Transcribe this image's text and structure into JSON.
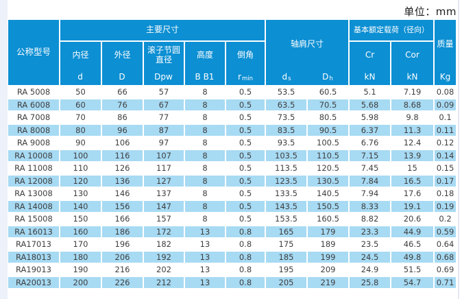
{
  "page": {
    "unit_label": "单位：mm"
  },
  "colors": {
    "header_blue": "#0c8fd3",
    "row_blue": "#a7daf3",
    "row_white": "#ffffff",
    "text_dark": "#3e3e3e"
  },
  "table": {
    "header": {
      "model_col": "公称型号",
      "groups": {
        "main_dims": "主要尺寸",
        "shoulder_dims": "轴肩尺寸",
        "load_rating": "基本额定载荷（径向）",
        "mass": "质量"
      },
      "sub_columns": [
        {
          "label": "内径",
          "symbol": "d",
          "symbol_sub": ""
        },
        {
          "label": "外径",
          "symbol": "D",
          "symbol_sub": ""
        },
        {
          "label": "滚子节圆直径",
          "symbol": "Dpw",
          "symbol_sub": ""
        },
        {
          "label": "高度",
          "symbol": "B B1",
          "symbol_sub": ""
        },
        {
          "label": "倒角",
          "symbol": "r",
          "symbol_sub": "min"
        }
      ],
      "shoulder_symbols": [
        {
          "base": "d",
          "sub": "s"
        },
        {
          "base": "D",
          "sub": "h"
        }
      ],
      "load_columns": [
        {
          "label": "Cr",
          "unit": "kN"
        },
        {
          "label": "Cor",
          "unit": "kN"
        }
      ],
      "mass_unit": "Kg"
    },
    "rows": [
      [
        "RA 5008",
        "50",
        "66",
        "57",
        "8",
        "0.5",
        "53.5",
        "60.5",
        "5.1",
        "7.19",
        "0.08"
      ],
      [
        "RA 6008",
        "60",
        "76",
        "67",
        "8",
        "0.5",
        "63.5",
        "70.5",
        "5.68",
        "8.68",
        "0.09"
      ],
      [
        "RA 7008",
        "70",
        "86",
        "77",
        "8",
        "0.5",
        "73.5",
        "80.5",
        "5.98",
        "9.8",
        "0.1"
      ],
      [
        "RA 8008",
        "80",
        "96",
        "87",
        "8",
        "0.5",
        "83.5",
        "90.5",
        "6.37",
        "11.3",
        "0.11"
      ],
      [
        "RA 9008",
        "90",
        "106",
        "97",
        "8",
        "0.5",
        "93.5",
        "100.5",
        "6.76",
        "12.4",
        "0.12"
      ],
      [
        "RA 10008",
        "100",
        "116",
        "107",
        "8",
        "0.5",
        "103.5",
        "110.5",
        "7.15",
        "13.9",
        "0.14"
      ],
      [
        "RA 11008",
        "110",
        "126",
        "117",
        "8",
        "0.5",
        "113.5",
        "120.5",
        "7.45",
        "15",
        "0.15"
      ],
      [
        "RA 12008",
        "120",
        "136",
        "127",
        "8",
        "0.5",
        "123.5",
        "130.5",
        "7.84",
        "16.5",
        "0.17"
      ],
      [
        "RA 13008",
        "130",
        "146",
        "137",
        "8",
        "0.5",
        "133.5",
        "140.5",
        "7.94",
        "17.6",
        "0.18"
      ],
      [
        "RA 14008",
        "140",
        "156",
        "147",
        "8",
        "0.5",
        "143.5",
        "150.5",
        "8.33",
        "19.1",
        "0.19"
      ],
      [
        "RA 15008",
        "150",
        "166",
        "157",
        "8",
        "0.5",
        "153.5",
        "160.5",
        "8.82",
        "20.6",
        "0.2"
      ],
      [
        "RA 16013",
        "160",
        "186",
        "172",
        "13",
        "0.8",
        "165",
        "179",
        "23.3",
        "44.9",
        "0.59"
      ],
      [
        "RA17013",
        "170",
        "196",
        "182",
        "13",
        "0.8",
        "175",
        "189",
        "23.5",
        "46.5",
        "0.64"
      ],
      [
        "RA18013",
        "180",
        "206",
        "192",
        "13",
        "0.8",
        "185",
        "199",
        "24.5",
        "49.8",
        "0.68"
      ],
      [
        "RA19013",
        "190",
        "216",
        "202",
        "13",
        "0.8",
        "195",
        "209",
        "24.9",
        "51.5",
        "0.69"
      ],
      [
        "RA20013",
        "200",
        "226",
        "212",
        "13",
        "0.8",
        "205",
        "219",
        "25.8",
        "54.7",
        "0.71"
      ]
    ]
  }
}
